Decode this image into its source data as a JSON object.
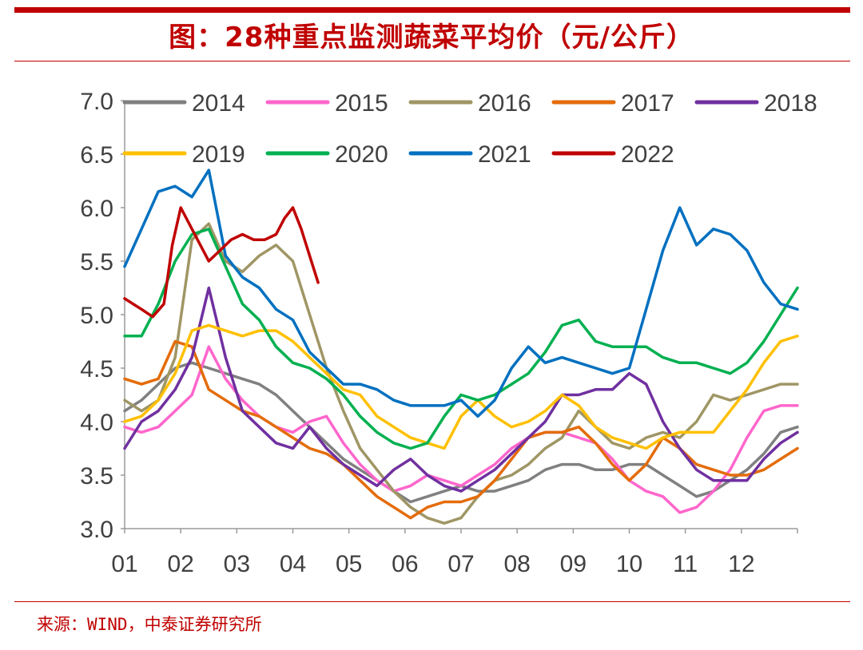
{
  "figure": {
    "title": "图：28种重点监测蔬菜平均价（元/公斤）",
    "source": "来源：WIND，中泰证券研究所"
  },
  "chart_data": {
    "type": "line",
    "title": "28种重点监测蔬菜平均价（元/公斤）",
    "xlabel": "",
    "ylabel": "",
    "xlim": [
      1,
      13
    ],
    "ylim": [
      3.0,
      7.0
    ],
    "yticks": [
      "3.0",
      "3.5",
      "4.0",
      "4.5",
      "5.0",
      "5.5",
      "6.0",
      "6.5",
      "7.0"
    ],
    "categories": [
      "01",
      "02",
      "03",
      "04",
      "05",
      "06",
      "07",
      "08",
      "09",
      "10",
      "11",
      "12"
    ],
    "legend_position": "top",
    "series": [
      {
        "name": "2014",
        "color": "#808080",
        "x": [
          1.0,
          1.3,
          1.6,
          1.9,
          2.2,
          2.5,
          2.8,
          3.1,
          3.4,
          3.7,
          4.0,
          4.3,
          4.6,
          4.9,
          5.2,
          5.5,
          5.8,
          6.1,
          6.4,
          6.7,
          7.0,
          7.3,
          7.6,
          7.9,
          8.2,
          8.5,
          8.8,
          9.1,
          9.4,
          9.7,
          10.0,
          10.3,
          10.6,
          10.9,
          11.2,
          11.5,
          11.8,
          12.1,
          12.4,
          12.7,
          13.0
        ],
        "values": [
          4.1,
          4.2,
          4.35,
          4.5,
          4.55,
          4.5,
          4.45,
          4.4,
          4.35,
          4.25,
          4.1,
          3.95,
          3.8,
          3.65,
          3.55,
          3.45,
          3.35,
          3.25,
          3.3,
          3.35,
          3.4,
          3.35,
          3.35,
          3.4,
          3.45,
          3.55,
          3.6,
          3.6,
          3.55,
          3.55,
          3.6,
          3.6,
          3.5,
          3.4,
          3.3,
          3.35,
          3.45,
          3.55,
          3.7,
          3.9,
          3.95
        ]
      },
      {
        "name": "2015",
        "color": "#ff66cc",
        "x": [
          1.0,
          1.3,
          1.6,
          1.9,
          2.2,
          2.5,
          2.8,
          3.1,
          3.4,
          3.7,
          4.0,
          4.3,
          4.6,
          4.9,
          5.2,
          5.5,
          5.8,
          6.1,
          6.4,
          6.7,
          7.0,
          7.3,
          7.6,
          7.9,
          8.2,
          8.5,
          8.8,
          9.1,
          9.4,
          9.7,
          10.0,
          10.3,
          10.6,
          10.9,
          11.2,
          11.5,
          11.8,
          12.1,
          12.4,
          12.7,
          13.0
        ],
        "values": [
          3.95,
          3.9,
          3.95,
          4.1,
          4.25,
          4.7,
          4.4,
          4.2,
          4.05,
          3.95,
          3.9,
          4.0,
          4.05,
          3.8,
          3.6,
          3.45,
          3.35,
          3.4,
          3.5,
          3.45,
          3.4,
          3.5,
          3.6,
          3.75,
          3.85,
          3.9,
          3.9,
          3.85,
          3.8,
          3.65,
          3.45,
          3.35,
          3.3,
          3.15,
          3.2,
          3.35,
          3.55,
          3.85,
          4.1,
          4.15,
          4.15
        ]
      },
      {
        "name": "2016",
        "color": "#a09665",
        "x": [
          1.0,
          1.3,
          1.6,
          1.9,
          2.2,
          2.5,
          2.8,
          3.1,
          3.4,
          3.7,
          4.0,
          4.3,
          4.6,
          4.9,
          5.2,
          5.5,
          5.8,
          6.1,
          6.4,
          6.7,
          7.0,
          7.3,
          7.6,
          7.9,
          8.2,
          8.5,
          8.8,
          9.1,
          9.4,
          9.7,
          10.0,
          10.3,
          10.6,
          10.9,
          11.2,
          11.5,
          11.8,
          12.1,
          12.4,
          12.7,
          13.0
        ],
        "values": [
          4.2,
          4.1,
          4.2,
          4.6,
          5.7,
          5.85,
          5.5,
          5.4,
          5.55,
          5.65,
          5.5,
          5.0,
          4.5,
          4.1,
          3.75,
          3.55,
          3.35,
          3.2,
          3.1,
          3.05,
          3.1,
          3.3,
          3.45,
          3.5,
          3.6,
          3.75,
          3.85,
          4.1,
          3.95,
          3.8,
          3.75,
          3.85,
          3.9,
          3.85,
          4.0,
          4.25,
          4.2,
          4.25,
          4.3,
          4.35,
          4.35
        ]
      },
      {
        "name": "2017",
        "color": "#e46c0a",
        "x": [
          1.0,
          1.3,
          1.6,
          1.9,
          2.2,
          2.5,
          2.8,
          3.1,
          3.4,
          3.7,
          4.0,
          4.3,
          4.6,
          4.9,
          5.2,
          5.5,
          5.8,
          6.1,
          6.4,
          6.7,
          7.0,
          7.3,
          7.6,
          7.9,
          8.2,
          8.5,
          8.8,
          9.1,
          9.4,
          9.7,
          10.0,
          10.3,
          10.6,
          10.9,
          11.2,
          11.5,
          11.8,
          12.1,
          12.4,
          12.7,
          13.0
        ],
        "values": [
          4.4,
          4.35,
          4.4,
          4.75,
          4.7,
          4.3,
          4.2,
          4.1,
          4.05,
          3.95,
          3.85,
          3.75,
          3.7,
          3.6,
          3.45,
          3.3,
          3.2,
          3.1,
          3.2,
          3.25,
          3.25,
          3.3,
          3.45,
          3.65,
          3.85,
          3.9,
          3.9,
          3.95,
          3.8,
          3.6,
          3.45,
          3.6,
          3.85,
          3.75,
          3.6,
          3.55,
          3.5,
          3.5,
          3.55,
          3.65,
          3.75
        ]
      },
      {
        "name": "2018",
        "color": "#7030a0",
        "x": [
          1.0,
          1.3,
          1.6,
          1.9,
          2.2,
          2.5,
          2.8,
          3.1,
          3.4,
          3.7,
          4.0,
          4.3,
          4.6,
          4.9,
          5.2,
          5.5,
          5.8,
          6.1,
          6.4,
          6.7,
          7.0,
          7.3,
          7.6,
          7.9,
          8.2,
          8.5,
          8.8,
          9.1,
          9.4,
          9.7,
          10.0,
          10.3,
          10.6,
          10.9,
          11.2,
          11.5,
          11.8,
          12.1,
          12.4,
          12.7,
          13.0
        ],
        "values": [
          3.75,
          4.0,
          4.1,
          4.3,
          4.6,
          5.25,
          4.6,
          4.1,
          3.95,
          3.8,
          3.75,
          3.95,
          3.75,
          3.6,
          3.5,
          3.4,
          3.55,
          3.65,
          3.5,
          3.4,
          3.35,
          3.45,
          3.55,
          3.7,
          3.85,
          4.0,
          4.25,
          4.25,
          4.3,
          4.3,
          4.45,
          4.35,
          4.0,
          3.75,
          3.55,
          3.45,
          3.45,
          3.45,
          3.65,
          3.8,
          3.9
        ]
      },
      {
        "name": "2019",
        "color": "#ffc000",
        "x": [
          1.0,
          1.3,
          1.6,
          1.9,
          2.2,
          2.5,
          2.8,
          3.1,
          3.4,
          3.7,
          4.0,
          4.3,
          4.6,
          4.9,
          5.2,
          5.5,
          5.8,
          6.1,
          6.4,
          6.7,
          7.0,
          7.3,
          7.6,
          7.9,
          8.2,
          8.5,
          8.8,
          9.1,
          9.4,
          9.7,
          10.0,
          10.3,
          10.6,
          10.9,
          11.2,
          11.5,
          11.8,
          12.1,
          12.4,
          12.7,
          13.0
        ],
        "values": [
          4.0,
          4.05,
          4.2,
          4.45,
          4.85,
          4.9,
          4.85,
          4.8,
          4.85,
          4.85,
          4.75,
          4.6,
          4.45,
          4.3,
          4.25,
          4.05,
          3.95,
          3.85,
          3.8,
          3.75,
          4.05,
          4.2,
          4.05,
          3.95,
          4.0,
          4.1,
          4.25,
          4.15,
          3.95,
          3.85,
          3.8,
          3.75,
          3.85,
          3.9,
          3.9,
          3.9,
          4.1,
          4.3,
          4.55,
          4.75,
          4.8
        ]
      },
      {
        "name": "2020",
        "color": "#00b050",
        "x": [
          1.0,
          1.3,
          1.6,
          1.9,
          2.2,
          2.5,
          2.8,
          3.1,
          3.4,
          3.7,
          4.0,
          4.3,
          4.6,
          4.9,
          5.2,
          5.5,
          5.8,
          6.1,
          6.4,
          6.7,
          7.0,
          7.3,
          7.6,
          7.9,
          8.2,
          8.5,
          8.8,
          9.1,
          9.4,
          9.7,
          10.0,
          10.3,
          10.6,
          10.9,
          11.2,
          11.5,
          11.8,
          12.1,
          12.4,
          12.7,
          13.0
        ],
        "values": [
          4.8,
          4.8,
          5.1,
          5.5,
          5.75,
          5.8,
          5.45,
          5.1,
          4.95,
          4.7,
          4.55,
          4.5,
          4.4,
          4.25,
          4.05,
          3.9,
          3.8,
          3.75,
          3.8,
          4.05,
          4.25,
          4.2,
          4.25,
          4.35,
          4.45,
          4.65,
          4.9,
          4.95,
          4.75,
          4.7,
          4.7,
          4.7,
          4.6,
          4.55,
          4.55,
          4.5,
          4.45,
          4.55,
          4.75,
          5.0,
          5.25
        ]
      },
      {
        "name": "2021",
        "color": "#0070c0",
        "x": [
          1.0,
          1.3,
          1.6,
          1.9,
          2.2,
          2.5,
          2.8,
          3.1,
          3.4,
          3.7,
          4.0,
          4.3,
          4.6,
          4.9,
          5.2,
          5.5,
          5.8,
          6.1,
          6.4,
          6.7,
          7.0,
          7.3,
          7.6,
          7.9,
          8.2,
          8.5,
          8.8,
          9.1,
          9.4,
          9.7,
          10.0,
          10.3,
          10.6,
          10.9,
          11.2,
          11.5,
          11.8,
          12.1,
          12.4,
          12.7,
          13.0
        ],
        "values": [
          5.45,
          5.8,
          6.15,
          6.2,
          6.1,
          6.35,
          5.55,
          5.35,
          5.25,
          5.05,
          4.95,
          4.65,
          4.5,
          4.35,
          4.35,
          4.3,
          4.2,
          4.15,
          4.15,
          4.15,
          4.2,
          4.05,
          4.2,
          4.5,
          4.7,
          4.55,
          4.6,
          4.55,
          4.5,
          4.45,
          4.5,
          5.05,
          5.6,
          6.0,
          5.65,
          5.8,
          5.75,
          5.6,
          5.3,
          5.1,
          5.05
        ]
      },
      {
        "name": "2022",
        "color": "#c00000",
        "x": [
          1.0,
          1.15,
          1.3,
          1.5,
          1.7,
          1.85,
          2.0,
          2.15,
          2.3,
          2.5,
          2.7,
          2.9,
          3.1,
          3.3,
          3.5,
          3.7,
          3.85,
          4.0,
          4.15,
          4.3,
          4.45
        ],
        "values": [
          5.15,
          5.1,
          5.05,
          4.98,
          5.1,
          5.65,
          6.0,
          5.85,
          5.7,
          5.5,
          5.6,
          5.7,
          5.75,
          5.7,
          5.7,
          5.75,
          5.9,
          6.0,
          5.8,
          5.55,
          5.3
        ]
      }
    ]
  }
}
